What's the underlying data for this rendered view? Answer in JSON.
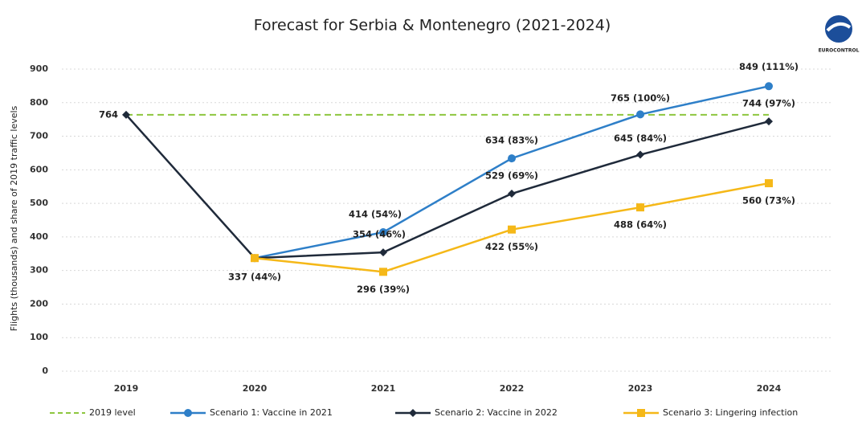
{
  "chart_data": {
    "type": "line",
    "title": "Forecast for Serbia & Montenegro (2021-2024)",
    "y_label": "Flights  (thousands) and share of 2019 traffic levels",
    "logo_text": "EUROCONTROL",
    "categories": [
      "2019",
      "2020",
      "2021",
      "2022",
      "2023",
      "2024"
    ],
    "ylim": [
      0,
      900
    ],
    "yticks": [
      0,
      100,
      200,
      300,
      400,
      500,
      600,
      700,
      800,
      900
    ],
    "grid": true,
    "legend": "bottom",
    "series": [
      {
        "name": "2019 level",
        "color": "#8dc63f",
        "dash": true,
        "marker": null,
        "values": [
          764,
          764,
          764,
          764,
          764,
          764
        ]
      },
      {
        "name": "Scenario 1: Vaccine in 2021",
        "color": "#2e7fc8",
        "marker": "circle",
        "values": [
          null,
          337,
          414,
          634,
          765,
          849
        ],
        "value_labels": [
          null,
          "337 (44%)",
          "414 (54%)",
          "634 (83%)",
          "765 (100%)",
          "849 (111%)"
        ]
      },
      {
        "name": "Scenario 2: Vaccine in 2022",
        "color": "#1f2a3a",
        "marker": "diamond",
        "values": [
          764,
          337,
          354,
          529,
          645,
          744
        ],
        "value_labels": [
          "764",
          null,
          "354 (46%)",
          "529 (69%)",
          "645 (84%)",
          "744 (97%)"
        ]
      },
      {
        "name": "Scenario 3: Lingering infection",
        "color": "#f5b818",
        "marker": "square",
        "values": [
          null,
          337,
          296,
          422,
          488,
          560
        ],
        "value_labels": [
          null,
          null,
          "296 (39%)",
          "422 (55%)",
          "488 (64%)",
          "560 (73%)"
        ]
      }
    ]
  }
}
